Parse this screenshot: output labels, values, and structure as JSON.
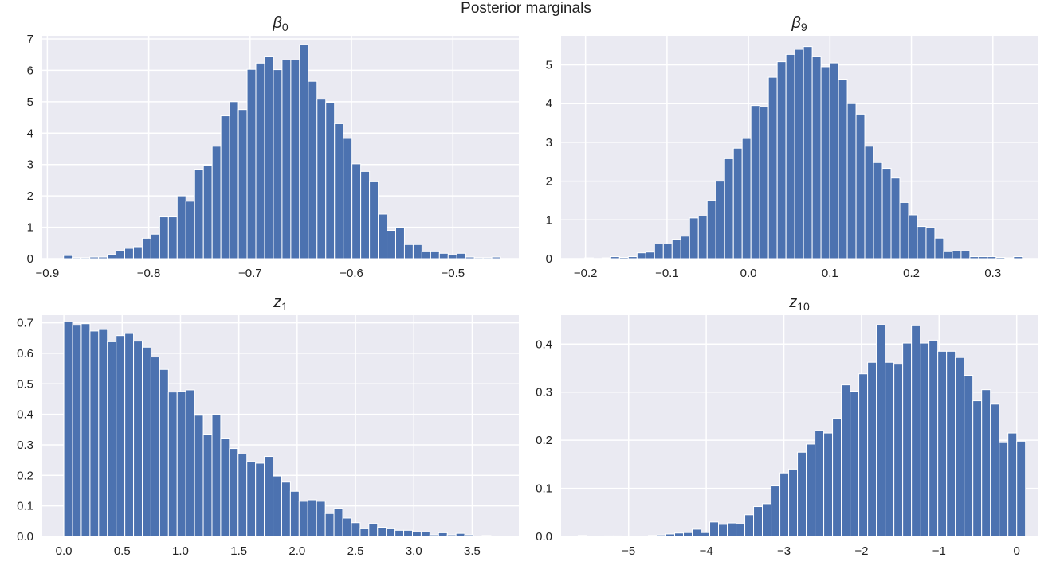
{
  "figure_title": "Posterior marginals",
  "chart_data": [
    {
      "type": "bar",
      "title": "β",
      "title_subscript": "0",
      "xlabel": "",
      "ylabel": "",
      "xlim": [
        -0.905,
        -0.435
      ],
      "ylim": [
        0,
        7.1
      ],
      "xticks": [
        -0.9,
        -0.8,
        -0.7,
        -0.6,
        -0.5
      ],
      "xtick_labels": [
        "−0.9",
        "−0.8",
        "−0.7",
        "−0.6",
        "−0.5"
      ],
      "yticks": [
        0,
        1,
        2,
        3,
        4,
        5,
        6,
        7
      ],
      "ytick_labels": [
        "0",
        "1",
        "2",
        "3",
        "4",
        "5",
        "6",
        "7"
      ],
      "bin_start": -0.884,
      "bin_width": 0.00862,
      "values": [
        0.1,
        0.03,
        0.03,
        0.05,
        0.05,
        0.13,
        0.25,
        0.33,
        0.38,
        0.65,
        0.78,
        1.33,
        1.33,
        2.0,
        1.83,
        2.85,
        2.98,
        3.58,
        4.55,
        5.0,
        4.75,
        6.03,
        6.23,
        6.45,
        6.02,
        6.33,
        6.33,
        6.82,
        5.65,
        5.08,
        4.97,
        4.3,
        3.83,
        3.02,
        2.78,
        2.45,
        1.42,
        0.9,
        1.0,
        0.45,
        0.45,
        0.22,
        0.22,
        0.17,
        0.12,
        0.17,
        0.05,
        0.03,
        0.03,
        0.05
      ],
      "grid": true
    },
    {
      "type": "bar",
      "title": "β",
      "title_subscript": "9",
      "xlabel": "",
      "ylabel": "",
      "xlim": [
        -0.23,
        0.355
      ],
      "ylim": [
        0,
        5.75
      ],
      "xticks": [
        -0.2,
        -0.1,
        0.0,
        0.1,
        0.2,
        0.3
      ],
      "xtick_labels": [
        "−0.2",
        "−0.1",
        "0.0",
        "0.1",
        "0.2",
        "0.3"
      ],
      "yticks": [
        0,
        1,
        2,
        3,
        4,
        5
      ],
      "ytick_labels": [
        "0",
        "1",
        "2",
        "3",
        "4",
        "5"
      ],
      "bin_start": -0.212,
      "bin_width": 0.01075,
      "values": [
        0.0,
        0.02,
        0.0,
        0.02,
        0.05,
        0.03,
        0.05,
        0.15,
        0.17,
        0.38,
        0.38,
        0.5,
        0.58,
        1.05,
        1.1,
        1.5,
        2.0,
        2.58,
        2.85,
        3.1,
        3.95,
        3.92,
        4.68,
        5.08,
        5.27,
        5.4,
        5.47,
        5.22,
        4.95,
        5.05,
        4.63,
        4.0,
        3.73,
        2.9,
        2.48,
        2.33,
        2.08,
        1.45,
        1.13,
        0.83,
        0.8,
        0.53,
        0.18,
        0.2,
        0.2,
        0.05,
        0.05,
        0.05,
        0.03,
        0.02,
        0.05
      ],
      "grid": true
    },
    {
      "type": "bar",
      "title": "z",
      "title_subscript": "1",
      "xlabel": "",
      "ylabel": "",
      "xlim": [
        -0.185,
        3.9
      ],
      "ylim": [
        0,
        0.725
      ],
      "xticks": [
        0.0,
        0.5,
        1.0,
        1.5,
        2.0,
        2.5,
        3.0,
        3.5
      ],
      "xtick_labels": [
        "0.0",
        "0.5",
        "1.0",
        "1.5",
        "2.0",
        "2.5",
        "3.0",
        "3.5"
      ],
      "yticks": [
        0.0,
        0.1,
        0.2,
        0.3,
        0.4,
        0.5,
        0.6,
        0.7
      ],
      "ytick_labels": [
        "0.0",
        "0.1",
        "0.2",
        "0.3",
        "0.4",
        "0.5",
        "0.6",
        "0.7"
      ],
      "bin_start": 0.0,
      "bin_width": 0.0747,
      "values": [
        0.703,
        0.692,
        0.697,
        0.673,
        0.678,
        0.638,
        0.658,
        0.665,
        0.64,
        0.62,
        0.588,
        0.547,
        0.473,
        0.475,
        0.48,
        0.397,
        0.335,
        0.398,
        0.322,
        0.288,
        0.27,
        0.245,
        0.24,
        0.262,
        0.198,
        0.178,
        0.148,
        0.115,
        0.12,
        0.115,
        0.075,
        0.092,
        0.06,
        0.045,
        0.025,
        0.042,
        0.03,
        0.025,
        0.02,
        0.02,
        0.015,
        0.015,
        0.005,
        0.012,
        0.005,
        0.01,
        0.005,
        0.0,
        0.003,
        0.0
      ],
      "grid": true
    },
    {
      "type": "bar",
      "title": "z",
      "title_subscript": "10",
      "xlabel": "",
      "ylabel": "",
      "xlim": [
        -5.87,
        0.27
      ],
      "ylim": [
        0,
        0.46
      ],
      "xticks": [
        -5,
        -4,
        -3,
        -2,
        -1,
        0
      ],
      "xtick_labels": [
        "−5",
        "−4",
        "−3",
        "−2",
        "−1",
        "0"
      ],
      "yticks": [
        0.0,
        0.1,
        0.2,
        0.3,
        0.4
      ],
      "ytick_labels": [
        "0.0",
        "0.1",
        "0.2",
        "0.3",
        "0.4"
      ],
      "bin_start": -5.65,
      "bin_width": 0.113,
      "values": [
        0.002,
        0.0,
        0.0,
        0.001,
        0.001,
        0.0,
        0.0,
        0.0,
        0.002,
        0.003,
        0.005,
        0.007,
        0.008,
        0.015,
        0.008,
        0.03,
        0.025,
        0.028,
        0.026,
        0.045,
        0.062,
        0.068,
        0.105,
        0.132,
        0.14,
        0.175,
        0.192,
        0.22,
        0.215,
        0.245,
        0.315,
        0.302,
        0.338,
        0.362,
        0.44,
        0.362,
        0.358,
        0.402,
        0.438,
        0.402,
        0.408,
        0.385,
        0.385,
        0.372,
        0.335,
        0.282,
        0.305,
        0.275,
        0.195,
        0.215,
        0.198
      ],
      "grid": true
    }
  ]
}
